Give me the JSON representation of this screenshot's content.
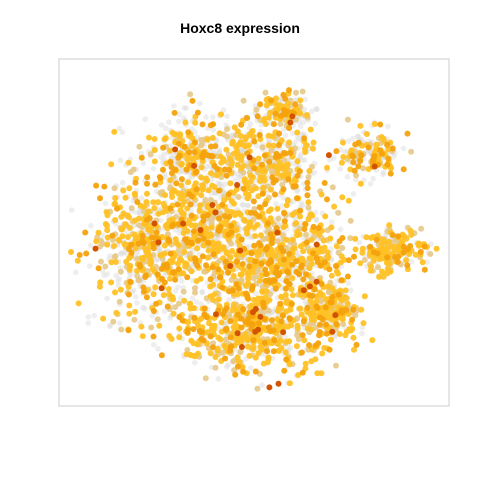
{
  "chart_data": {
    "type": "scatter",
    "title": "Hoxc8 expression",
    "xlabel": "",
    "ylabel": "",
    "grid": false,
    "legend": "none",
    "axes_shown": false,
    "colors": {
      "no_expression": "#d9d9d9",
      "low": "#e6c98a",
      "mid": "#ffc125",
      "high": "#f4a20c",
      "peak": "#d35400",
      "panel_border": "#cccccc"
    },
    "clusters": [
      {
        "cx": 0.48,
        "cy": 0.77,
        "rx": 0.19,
        "ry": 0.14,
        "n": 650,
        "expr": 0.72
      },
      {
        "cx": 0.22,
        "cy": 0.55,
        "rx": 0.14,
        "ry": 0.2,
        "n": 550,
        "expr": 0.6
      },
      {
        "cx": 0.4,
        "cy": 0.5,
        "rx": 0.16,
        "ry": 0.17,
        "n": 600,
        "expr": 0.65
      },
      {
        "cx": 0.6,
        "cy": 0.55,
        "rx": 0.13,
        "ry": 0.16,
        "n": 500,
        "expr": 0.62
      },
      {
        "cx": 0.7,
        "cy": 0.73,
        "rx": 0.07,
        "ry": 0.07,
        "n": 220,
        "expr": 0.78
      },
      {
        "cx": 0.35,
        "cy": 0.28,
        "rx": 0.14,
        "ry": 0.12,
        "n": 380,
        "expr": 0.45
      },
      {
        "cx": 0.55,
        "cy": 0.3,
        "rx": 0.12,
        "ry": 0.11,
        "n": 330,
        "expr": 0.5
      },
      {
        "cx": 0.85,
        "cy": 0.55,
        "rx": 0.09,
        "ry": 0.06,
        "n": 200,
        "expr": 0.7
      },
      {
        "cx": 0.79,
        "cy": 0.27,
        "rx": 0.08,
        "ry": 0.07,
        "n": 170,
        "expr": 0.55
      },
      {
        "cx": 0.57,
        "cy": 0.15,
        "rx": 0.07,
        "ry": 0.05,
        "n": 150,
        "expr": 0.58
      }
    ]
  }
}
